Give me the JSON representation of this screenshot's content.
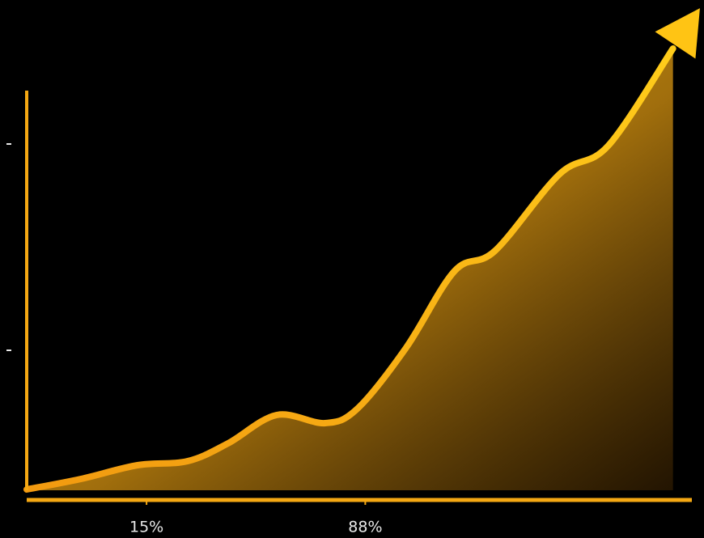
{
  "chart_data": {
    "type": "area",
    "x": [
      -25,
      -6.9,
      12.0,
      28.7,
      42.2,
      58.4,
      74.6,
      85.4,
      101.6,
      117.8,
      131.3,
      152.9,
      169.1,
      190.7
    ],
    "series": [
      {
        "color": "#f5a813",
        "values": [
          2.6,
          5.2,
          8.6,
          9.6,
          14,
          21,
          19,
          22.6,
          37.6,
          56.6,
          61.6,
          80.6,
          87.6,
          111.6
        ]
      }
    ],
    "xlim": [
      -25,
      197
    ],
    "ylim": [
      0,
      120
    ],
    "xticks": [
      {
        "value": 15,
        "label": "15%"
      },
      {
        "value": 88,
        "label": "88%"
      }
    ],
    "yticks": [
      37,
      88
    ]
  }
}
